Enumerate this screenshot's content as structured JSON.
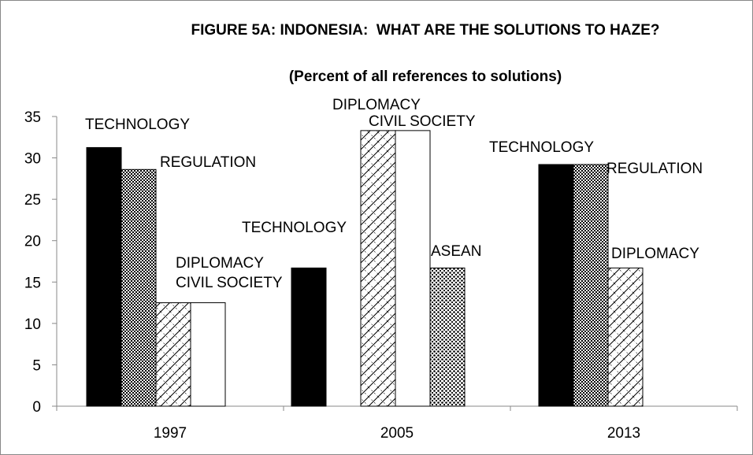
{
  "chart_data": {
    "type": "bar",
    "title": "FIGURE 5A: INDONESIA:  WHAT ARE THE SOLUTIONS TO HAZE?",
    "subtitle": "(Percent of all references to solutions)",
    "categories": [
      "1997",
      "2005",
      "2013"
    ],
    "series": [
      {
        "name": "TECHNOLOGY",
        "color": "#000000",
        "pattern": "solid",
        "values": [
          31.25,
          16.7,
          29.2
        ]
      },
      {
        "name": "REGULATION",
        "color": "#000000",
        "pattern": "checker",
        "values": [
          28.6,
          null,
          29.2
        ]
      },
      {
        "name": "DIPLOMACY",
        "color": "#000000",
        "pattern": "hatch",
        "values": [
          12.5,
          33.3,
          16.7
        ]
      },
      {
        "name": "CIVIL SOCIETY",
        "color": "#000000",
        "pattern": "none",
        "values": [
          12.5,
          33.3,
          null
        ]
      },
      {
        "name": "ASEAN",
        "color": "#000000",
        "pattern": "dots",
        "values": [
          null,
          16.7,
          null
        ]
      }
    ],
    "ylim": [
      0,
      35
    ],
    "yticks": [
      0,
      5,
      10,
      15,
      20,
      25,
      30,
      35
    ],
    "grid": false
  }
}
